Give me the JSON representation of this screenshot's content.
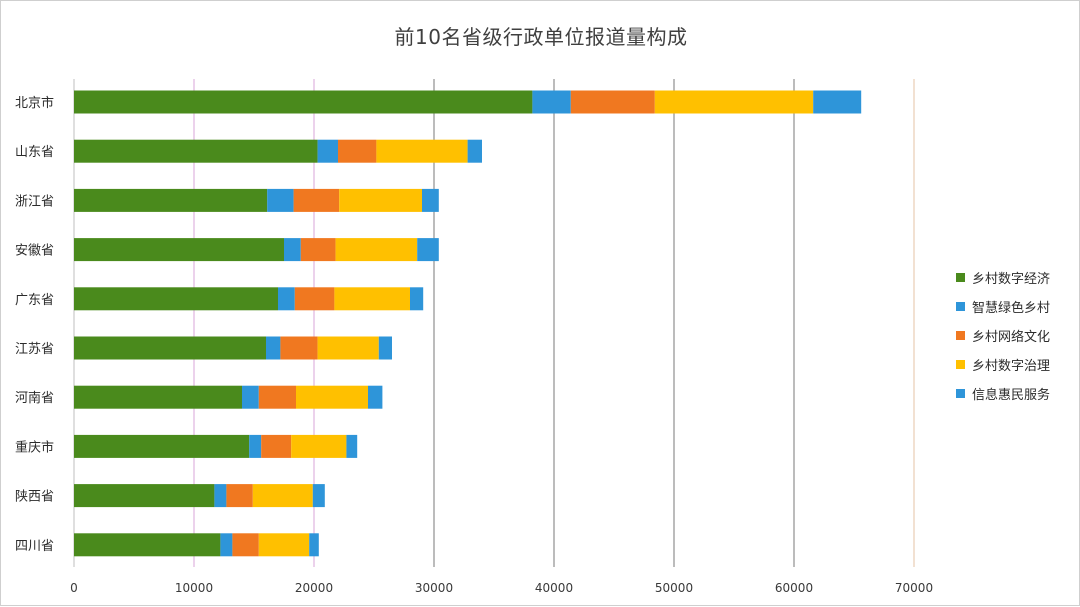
{
  "chart_data": {
    "type": "bar",
    "orientation": "horizontal",
    "stacked": true,
    "title": "前10名省级行政单位报道量构成",
    "categories": [
      "北京市",
      "山东省",
      "浙江省",
      "安徽省",
      "广东省",
      "江苏省",
      "河南省",
      "重庆市",
      "陕西省",
      "四川省"
    ],
    "series": [
      {
        "name": "乡村数字经济",
        "color": "#4a8a1c",
        "values": [
          38200,
          20300,
          16100,
          17500,
          17000,
          16000,
          14000,
          14600,
          11700,
          12200
        ]
      },
      {
        "name": "智慧绿色乡村",
        "color": "#2e95d9",
        "values": [
          3200,
          1700,
          2200,
          1400,
          1400,
          1200,
          1400,
          1000,
          1000,
          1000
        ]
      },
      {
        "name": "乡村网络文化",
        "color": "#f07820",
        "values": [
          7000,
          3200,
          3800,
          2900,
          3300,
          3100,
          3100,
          2500,
          2200,
          2200
        ]
      },
      {
        "name": "乡村数字治理",
        "color": "#ffc000",
        "values": [
          13200,
          7600,
          6900,
          6800,
          6300,
          5100,
          6000,
          4600,
          5000,
          4200
        ]
      },
      {
        "name": "信息惠民服务",
        "color": "#2e95d9",
        "values": [
          4000,
          1200,
          1400,
          1800,
          1100,
          1100,
          1200,
          900,
          1000,
          800
        ]
      }
    ],
    "xlim": [
      0,
      70000
    ],
    "xticks": [
      0,
      10000,
      20000,
      30000,
      40000,
      50000,
      60000,
      70000
    ],
    "xlabel": "",
    "ylabel": "",
    "grid": "vertical",
    "legend_position": "right"
  }
}
